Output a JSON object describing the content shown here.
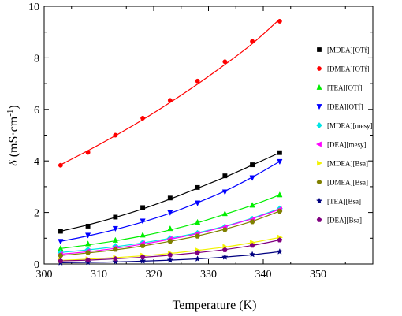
{
  "chart_data": {
    "type": "scatter",
    "xlabel": "Temperature (K)",
    "ylabel_symbol": "δ",
    "ylabel_unit": " (mS·cm",
    "ylabel_exp": "-1",
    "ylabel_close": ")",
    "xlim": [
      300,
      360
    ],
    "ylim": [
      0,
      10
    ],
    "xticks": [
      300,
      310,
      320,
      330,
      340,
      350
    ],
    "yticks": [
      0,
      2,
      4,
      6,
      8,
      10
    ],
    "grid": false,
    "legend_position": "right",
    "x": [
      303,
      308,
      313,
      318,
      323,
      328,
      333,
      338,
      343
    ],
    "series": [
      {
        "name": "[MDEA][OTf]",
        "color": "#000000",
        "marker": "square",
        "values": [
          1.27,
          1.47,
          1.82,
          2.19,
          2.56,
          2.97,
          3.42,
          3.85,
          4.32
        ],
        "fit": [
          1.27,
          1.52,
          1.81,
          2.14,
          2.52,
          2.94,
          3.37,
          3.84,
          4.32
        ]
      },
      {
        "name": "[DMEA][OTf]",
        "color": "#ff0000",
        "marker": "circle",
        "values": [
          3.83,
          4.33,
          5.0,
          5.66,
          6.35,
          7.1,
          7.85,
          8.64,
          9.42
        ],
        "fit": [
          3.85,
          4.4,
          4.98,
          5.6,
          6.27,
          6.98,
          7.74,
          8.55,
          9.5
        ]
      },
      {
        "name": "[TEA][OTf]",
        "color": "#00ee00",
        "marker": "triangle-up",
        "values": [
          0.6,
          0.78,
          0.92,
          1.12,
          1.37,
          1.62,
          1.95,
          2.28,
          2.68
        ],
        "fit": [
          0.6,
          0.74,
          0.9,
          1.09,
          1.32,
          1.6,
          1.93,
          2.28,
          2.68
        ]
      },
      {
        "name": "[DEA][OTf]",
        "color": "#0000ff",
        "marker": "triangle-down",
        "values": [
          0.88,
          1.12,
          1.38,
          1.67,
          2.0,
          2.37,
          2.8,
          3.35,
          3.98
        ],
        "fit": [
          0.88,
          1.09,
          1.34,
          1.63,
          1.97,
          2.38,
          2.83,
          3.37,
          3.98
        ]
      },
      {
        "name": "[MDEA][mesy]",
        "color": "#00e5e5",
        "marker": "diamond",
        "values": [
          0.45,
          0.56,
          0.7,
          0.83,
          1.0,
          1.2,
          1.45,
          1.75,
          2.15
        ],
        "fit": [
          0.45,
          0.55,
          0.67,
          0.82,
          1.0,
          1.21,
          1.47,
          1.78,
          2.15
        ]
      },
      {
        "name": "[DEA][mesy]",
        "color": "#ff00ff",
        "marker": "triangle-left",
        "values": [
          0.38,
          0.5,
          0.64,
          0.8,
          0.97,
          1.18,
          1.43,
          1.72,
          2.12
        ],
        "fit": [
          0.38,
          0.48,
          0.61,
          0.77,
          0.96,
          1.18,
          1.45,
          1.76,
          2.12
        ]
      },
      {
        "name": "[MDEA][Bsa]",
        "color": "#f2f200",
        "marker": "triangle-right",
        "values": [
          0.14,
          0.19,
          0.25,
          0.33,
          0.42,
          0.53,
          0.67,
          0.83,
          1.03
        ],
        "fit": [
          0.14,
          0.19,
          0.25,
          0.32,
          0.41,
          0.53,
          0.66,
          0.83,
          1.03
        ]
      },
      {
        "name": "[DMEA][Bsa]",
        "color": "#808000",
        "marker": "hexagon",
        "values": [
          0.33,
          0.44,
          0.57,
          0.71,
          0.88,
          1.08,
          1.33,
          1.64,
          2.05
        ],
        "fit": [
          0.33,
          0.43,
          0.55,
          0.7,
          0.88,
          1.09,
          1.35,
          1.66,
          2.05
        ]
      },
      {
        "name": "[TEA][Bsa]",
        "color": "#000080",
        "marker": "star",
        "values": [
          0.05,
          0.07,
          0.09,
          0.12,
          0.15,
          0.2,
          0.27,
          0.37,
          0.48
        ],
        "fit": [
          0.05,
          0.06,
          0.08,
          0.11,
          0.15,
          0.2,
          0.27,
          0.36,
          0.48
        ]
      },
      {
        "name": "[DEA][Bsa]",
        "color": "#800080",
        "marker": "pentagon",
        "values": [
          0.12,
          0.15,
          0.2,
          0.27,
          0.35,
          0.44,
          0.55,
          0.72,
          0.93
        ],
        "fit": [
          0.12,
          0.15,
          0.2,
          0.26,
          0.34,
          0.44,
          0.56,
          0.72,
          0.93
        ]
      }
    ]
  }
}
